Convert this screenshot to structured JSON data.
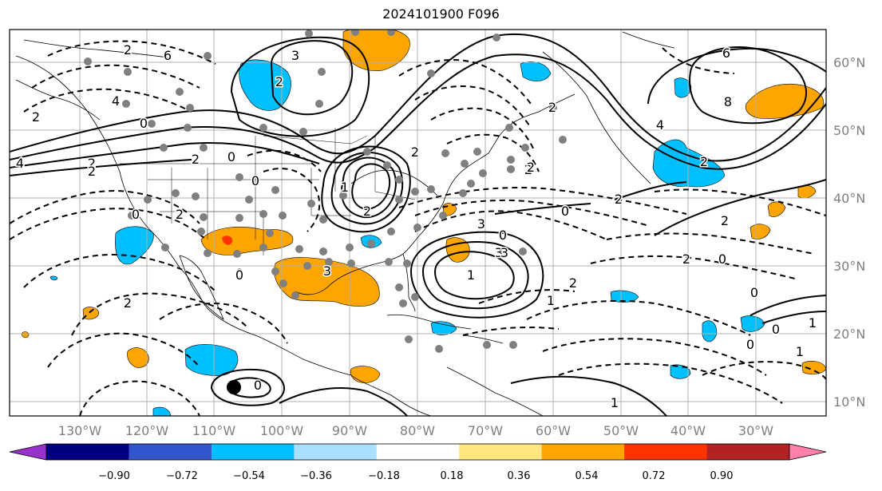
{
  "title": "2024101900 F096",
  "lon_labels": [
    "130°W",
    "120°W",
    "110°W",
    "100°W",
    "90°W",
    "80°W",
    "70°W",
    "60°W",
    "50°W",
    "40°W",
    "30°W"
  ],
  "lat_labels": [
    "60°N",
    "50°N",
    "40°N",
    "30°N",
    "20°N",
    "10°N"
  ],
  "colorbar": {
    "colors": [
      "#9933cc",
      "#000080",
      "#3355cc",
      "#00bfff",
      "#aadfff",
      "#ffffff",
      "#ffe680",
      "#ffa500",
      "#ff3300",
      "#b22222",
      "#ff80aa"
    ],
    "tick_labels": [
      "−0.90",
      "−0.72",
      "−0.54",
      "−0.36",
      "−0.18",
      "0.18",
      "0.36",
      "0.54",
      "0.72",
      "0.90"
    ]
  },
  "contour_labels": [
    "2",
    "4",
    "2",
    "0",
    "2",
    "4",
    "6",
    "3",
    "2",
    "2",
    "0",
    "2",
    "2",
    "0",
    "1",
    "0",
    "0",
    "3",
    "2",
    "2",
    "1",
    "3",
    "3",
    "2",
    "2",
    "1",
    "2",
    "0",
    "0",
    "3",
    "2",
    "2",
    "6",
    "8",
    "4",
    "2",
    "2",
    "0",
    "2",
    "0",
    "0",
    "1",
    "1",
    "0",
    "2",
    "0",
    "1",
    "0"
  ],
  "colors": {
    "positive_shading": "#ffa500",
    "strong_positive": "#ff3300",
    "negative_shading": "#00bfff",
    "station_marker": "#808080",
    "grid": "#b0b0b0"
  }
}
